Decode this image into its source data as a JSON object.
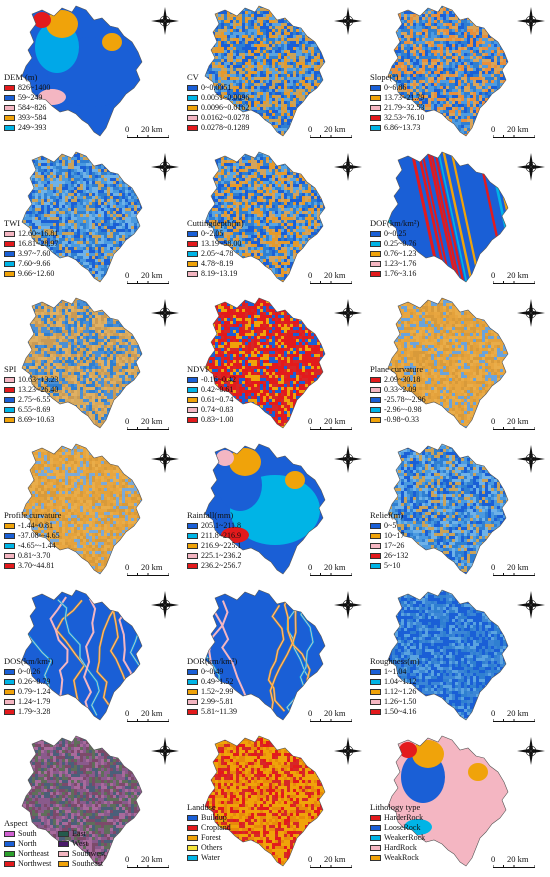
{
  "scale": {
    "zero": "0",
    "dist": "20 km"
  },
  "compass_labels": {
    "n": "N",
    "e": "E",
    "s": "S",
    "w": "W"
  },
  "panels": [
    {
      "id": "dem",
      "title": "DEM (m)",
      "pattern": "zones",
      "zones": [
        "#1a5fd6",
        "#1a5fd6",
        "#00a8e8",
        "#f0a30a",
        "#e31a1c",
        "#f4b6c2"
      ],
      "legend": [
        {
          "color": "#e31a1c",
          "label": "826~1400"
        },
        {
          "color": "#1a5fd6",
          "label": "59~249"
        },
        {
          "color": "#f4b6c2",
          "label": "584~826"
        },
        {
          "color": "#f0a30a",
          "label": "393~584"
        },
        {
          "color": "#00b4e6",
          "label": "249~393"
        }
      ]
    },
    {
      "id": "cv",
      "title": "CV",
      "pattern": "noise",
      "palette": [
        "#2f7fd1",
        "#5aa3e0",
        "#c9a25a",
        "#e59a2c",
        "#1a5fd6"
      ],
      "legend": [
        {
          "color": "#1a5fd6",
          "label": "0~0.0051"
        },
        {
          "color": "#00b4e6",
          "label": "0.0051~0.0096"
        },
        {
          "color": "#f0a30a",
          "label": "0.0096~0.0162"
        },
        {
          "color": "#f4b6c2",
          "label": "0.0162~0.0278"
        },
        {
          "color": "#e31a1c",
          "label": "0.0278~0.1289"
        }
      ]
    },
    {
      "id": "slope",
      "title": "Slope(°)",
      "pattern": "noise",
      "palette": [
        "#2f7fd1",
        "#4e9be0",
        "#d9a45a",
        "#e88f3c",
        "#1a5fd6"
      ],
      "legend": [
        {
          "color": "#1a5fd6",
          "label": "0~6.86"
        },
        {
          "color": "#f0a30a",
          "label": "13.73~21.79"
        },
        {
          "color": "#f4b6c2",
          "label": "21.79~32.53"
        },
        {
          "color": "#e31a1c",
          "label": "32.53~76.10"
        },
        {
          "color": "#00b4e6",
          "label": "6.86~13.73"
        }
      ]
    },
    {
      "id": "twi",
      "title": "TWI",
      "pattern": "noise",
      "palette": [
        "#2f7fd1",
        "#4a9ae0",
        "#6fb2e8",
        "#c9a25a",
        "#1a5fd6"
      ],
      "legend": [
        {
          "color": "#f4b6c2",
          "label": "12.60~16.81"
        },
        {
          "color": "#e31a1c",
          "label": "16.81~28.97"
        },
        {
          "color": "#1a5fd6",
          "label": "3.97~7.60"
        },
        {
          "color": "#00b4e6",
          "label": "7.60~9.66"
        },
        {
          "color": "#f0a30a",
          "label": "9.66~12.60"
        }
      ]
    },
    {
      "id": "cutting",
      "title": "Cuttingdepth(m)",
      "pattern": "noise",
      "palette": [
        "#2f7fd1",
        "#58a5e3",
        "#d2a35e",
        "#e59a2c",
        "#1a5fd6"
      ],
      "legend": [
        {
          "color": "#1a5fd6",
          "label": "0~2.05"
        },
        {
          "color": "#e31a1c",
          "label": "13.19~58.00"
        },
        {
          "color": "#00b4e6",
          "label": "2.05~4.78"
        },
        {
          "color": "#f0a30a",
          "label": "4.78~8.19"
        },
        {
          "color": "#f4b6c2",
          "label": "8.19~13.19"
        }
      ]
    },
    {
      "id": "dof",
      "title": "DOF(km/km²)",
      "pattern": "stripes",
      "base": "#1a5fd6",
      "stripe": [
        "#e31a1c",
        "#f0a30a",
        "#00b4e6"
      ],
      "legend": [
        {
          "color": "#1a5fd6",
          "label": "0~0.25"
        },
        {
          "color": "#00b4e6",
          "label": "0.25~0.76"
        },
        {
          "color": "#f0a30a",
          "label": "0.76~1.23"
        },
        {
          "color": "#f4b6c2",
          "label": "1.23~1.76"
        },
        {
          "color": "#e31a1c",
          "label": "1.76~3.16"
        }
      ]
    },
    {
      "id": "spi",
      "title": "SPI",
      "pattern": "noise",
      "palette": [
        "#d6a85c",
        "#e0b063",
        "#4a8fd6",
        "#c99a55",
        "#2f7fd1"
      ],
      "legend": [
        {
          "color": "#f4b6c2",
          "label": "10.63~13.23"
        },
        {
          "color": "#e31a1c",
          "label": "13.23~26.40"
        },
        {
          "color": "#1a5fd6",
          "label": "2.75~6.55"
        },
        {
          "color": "#00b4e6",
          "label": "6.55~8.69"
        },
        {
          "color": "#f0a30a",
          "label": "8.69~10.63"
        }
      ]
    },
    {
      "id": "ndvi",
      "title": "NDVI",
      "pattern": "noise",
      "palette": [
        "#e31a1c",
        "#e31a1c",
        "#d62728",
        "#f0a30a",
        "#1a5fd6"
      ],
      "legend": [
        {
          "color": "#1a5fd6",
          "label": "-0.16~0.42"
        },
        {
          "color": "#00b4e6",
          "label": "0.42~0.61"
        },
        {
          "color": "#f0a30a",
          "label": "0.61~0.74"
        },
        {
          "color": "#f4b6c2",
          "label": "0.74~0.83"
        },
        {
          "color": "#e31a1c",
          "label": "0.83~1.00"
        }
      ]
    },
    {
      "id": "plane",
      "title": "Plane curvature",
      "pattern": "noise",
      "palette": [
        "#e8a640",
        "#e9ad4a",
        "#e4a23c",
        "#6aa3dc",
        "#d89a3a"
      ],
      "legend": [
        {
          "color": "#e31a1c",
          "label": "2.09~30.18"
        },
        {
          "color": "#f4b6c2",
          "label": "0.33~2.09"
        },
        {
          "color": "#1a5fd6",
          "label": "-25.78~-2.96"
        },
        {
          "color": "#00b4e6",
          "label": "-2.96~-0.98"
        },
        {
          "color": "#f0a30a",
          "label": "-0.98~0.33"
        }
      ]
    },
    {
      "id": "profile",
      "title": "Profile curvature",
      "pattern": "noise",
      "palette": [
        "#e8a640",
        "#e9ad4a",
        "#e4a23c",
        "#7aa9d8",
        "#d89a3a"
      ],
      "legend": [
        {
          "color": "#f0a30a",
          "label": "-1.44~0.81"
        },
        {
          "color": "#1a5fd6",
          "label": "-37.08~-4.65"
        },
        {
          "color": "#00b4e6",
          "label": "-4.65~-1.44"
        },
        {
          "color": "#f4b6c2",
          "label": "0.81~3.70"
        },
        {
          "color": "#e31a1c",
          "label": "3.70~44.81"
        }
      ]
    },
    {
      "id": "rainfall",
      "title": "Rainfall(mm)",
      "pattern": "zones",
      "zones": [
        "#1a5fd6",
        "#00b4e6",
        "#1a5fd6",
        "#f0a30a",
        "#f4b6c2",
        "#e31a1c"
      ],
      "legend": [
        {
          "color": "#1a5fd6",
          "label": "205.1~211.8"
        },
        {
          "color": "#00b4e6",
          "label": "211.8~216.9"
        },
        {
          "color": "#f0a30a",
          "label": "216.9~225.1"
        },
        {
          "color": "#f4b6c2",
          "label": "225.1~236.2"
        },
        {
          "color": "#e31a1c",
          "label": "236.2~256.7"
        }
      ]
    },
    {
      "id": "relief",
      "title": "Relief(m)",
      "pattern": "noise",
      "palette": [
        "#2f7fd1",
        "#4a9ae0",
        "#c9a25a",
        "#1a5fd6",
        "#6fb2e8"
      ],
      "legend": [
        {
          "color": "#1a5fd6",
          "label": "0~5"
        },
        {
          "color": "#f0a30a",
          "label": "10~17"
        },
        {
          "color": "#f4b6c2",
          "label": "17~26"
        },
        {
          "color": "#e31a1c",
          "label": "26~132"
        },
        {
          "color": "#00b4e6",
          "label": "5~10"
        }
      ]
    },
    {
      "id": "dos",
      "title": "DOS(km/km²)",
      "pattern": "rivers",
      "base": "#1a5fd6",
      "stripe": [
        "#00b4e6",
        "#f0a30a",
        "#f4b6c2"
      ],
      "legend": [
        {
          "color": "#1a5fd6",
          "label": "0~0.26"
        },
        {
          "color": "#00b4e6",
          "label": "0.26~0.79"
        },
        {
          "color": "#f0a30a",
          "label": "0.79~1.24"
        },
        {
          "color": "#f4b6c2",
          "label": "1.24~1.79"
        },
        {
          "color": "#e31a1c",
          "label": "1.79~3.28"
        }
      ]
    },
    {
      "id": "dor",
      "title": "DOR(km/km²)",
      "pattern": "rivers",
      "base": "#1a5fd6",
      "stripe": [
        "#00b4e6",
        "#f0a30a",
        "#f4b6c2"
      ],
      "legend": [
        {
          "color": "#1a5fd6",
          "label": "0~0.49"
        },
        {
          "color": "#00b4e6",
          "label": "0.49~1.52"
        },
        {
          "color": "#f0a30a",
          "label": "1.52~2.99"
        },
        {
          "color": "#f4b6c2",
          "label": "2.99~5.81"
        },
        {
          "color": "#e31a1c",
          "label": "5.81~11.39"
        }
      ]
    },
    {
      "id": "roughness",
      "title": "Roughness(m)",
      "pattern": "noise",
      "palette": [
        "#1a5fd6",
        "#2f7fd1",
        "#3b86d6",
        "#5aa3e0",
        "#1a5fd6"
      ],
      "legend": [
        {
          "color": "#1a5fd6",
          "label": "1~1.04"
        },
        {
          "color": "#00b4e6",
          "label": "1.04~1.12"
        },
        {
          "color": "#f0a30a",
          "label": "1.12~1.26"
        },
        {
          "color": "#f4b6c2",
          "label": "1.26~1.50"
        },
        {
          "color": "#e31a1c",
          "label": "1.50~4.16"
        }
      ]
    },
    {
      "id": "aspect",
      "title": "Aspect",
      "pattern": "noise",
      "palette": [
        "#8a5a8c",
        "#5f6f5a",
        "#a86a9c",
        "#4b5f7a",
        "#7c4a6a"
      ],
      "twocol": true,
      "legend": [
        {
          "color": "#d060d0",
          "label": "South"
        },
        {
          "color": "#245a4c",
          "label": "East"
        },
        {
          "color": "#1a5fd6",
          "label": "North"
        },
        {
          "color": "#4a1a6a",
          "label": "West"
        },
        {
          "color": "#2ca02c",
          "label": "Northeast"
        },
        {
          "color": "#f4b6c2",
          "label": "Southwest"
        },
        {
          "color": "#e31a1c",
          "label": "Northwest"
        },
        {
          "color": "#f0a30a",
          "label": "Southeast"
        }
      ]
    },
    {
      "id": "landuse",
      "title": "Landuse",
      "pattern": "noise",
      "palette": [
        "#f0a30a",
        "#e31a1c",
        "#f0a30a",
        "#d62728",
        "#e88a0a"
      ],
      "legend": [
        {
          "color": "#1a5fd6",
          "label": "Buildup"
        },
        {
          "color": "#e31a1c",
          "label": "Cropland"
        },
        {
          "color": "#f0a30a",
          "label": "Forest"
        },
        {
          "color": "#f5e43a",
          "label": "Others"
        },
        {
          "color": "#00b4e6",
          "label": "Water"
        }
      ]
    },
    {
      "id": "lithology",
      "title": "Lithology type",
      "pattern": "zones",
      "zones": [
        "#f4b6c2",
        "#f4b6c2",
        "#1a5fd6",
        "#f0a30a",
        "#e31a1c",
        "#00b4e6"
      ],
      "legend": [
        {
          "color": "#e31a1c",
          "label": "HarderRock"
        },
        {
          "color": "#1a5fd6",
          "label": "LooseRock"
        },
        {
          "color": "#00b4e6",
          "label": "WeakerRock"
        },
        {
          "color": "#f4b6c2",
          "label": "HardRock"
        },
        {
          "color": "#f0a30a",
          "label": "WeakRock"
        }
      ]
    }
  ]
}
